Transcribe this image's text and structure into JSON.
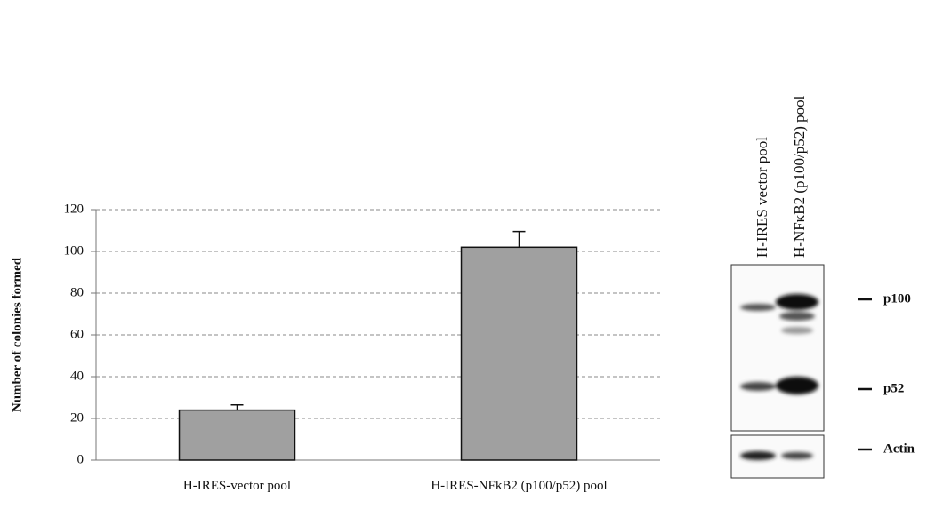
{
  "chart_data": {
    "type": "bar",
    "y_label": "Number of colonies formed",
    "categories": [
      "H-IRES-vector pool",
      "H-IRES-NFkB2 (p100/p52) pool"
    ],
    "values": [
      24,
      102
    ],
    "errors": [
      2.5,
      7.5
    ],
    "color": "#a0a0a0",
    "ylim": [
      0,
      120
    ],
    "yticks": [
      0,
      20,
      40,
      60,
      80,
      100,
      120
    ],
    "grid": true
  },
  "blot": {
    "lanes": [
      "H-IRES vector pool",
      "H-NFκB2 (p100/p52) pool"
    ],
    "markers": [
      "p100",
      "p52",
      "Actin"
    ]
  }
}
